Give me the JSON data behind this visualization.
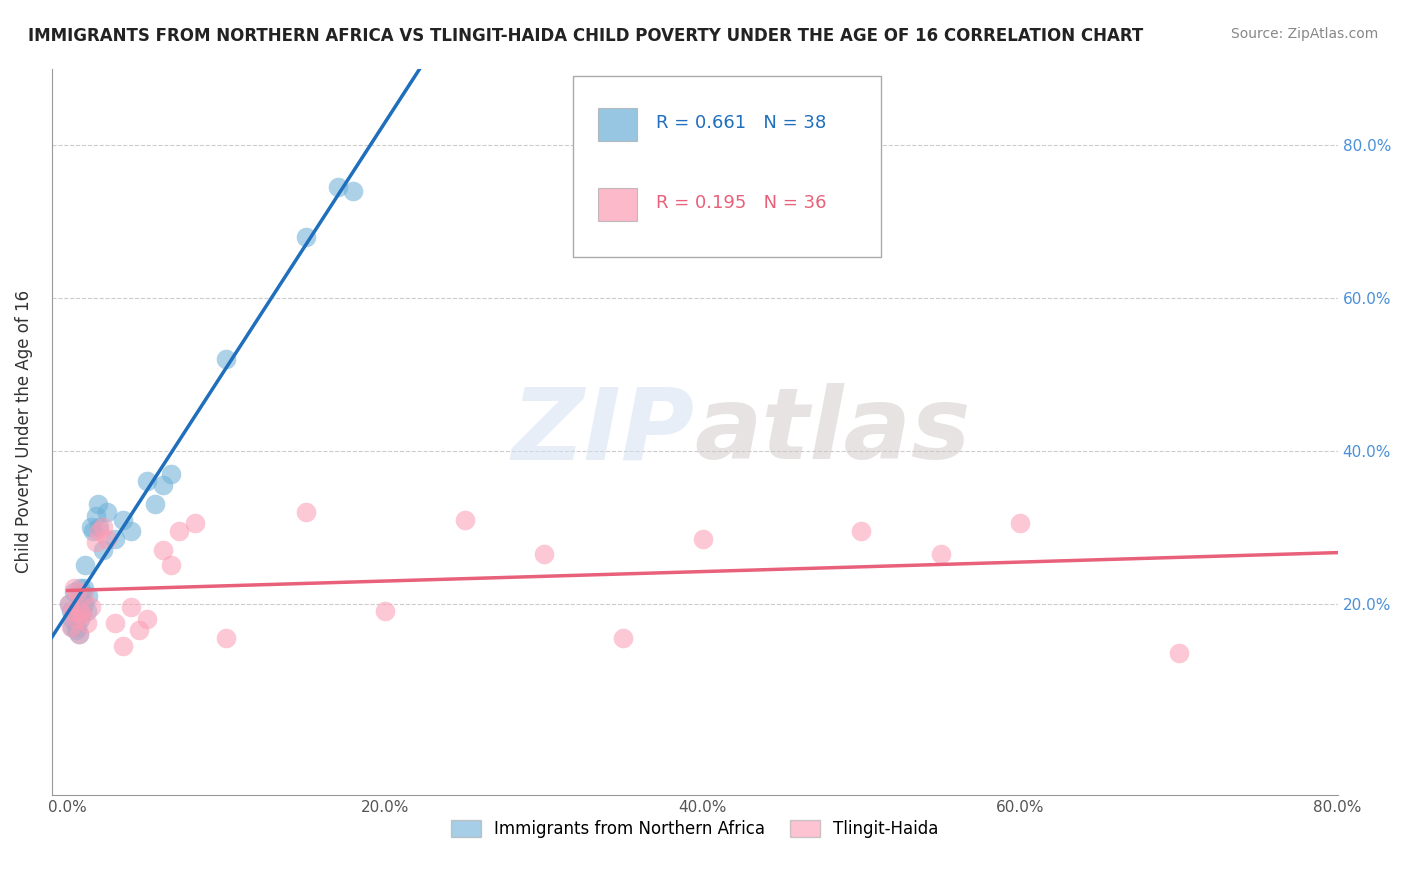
{
  "title": "IMMIGRANTS FROM NORTHERN AFRICA VS TLINGIT-HAIDA CHILD POVERTY UNDER THE AGE OF 16 CORRELATION CHART",
  "source": "Source: ZipAtlas.com",
  "xlabel": "",
  "ylabel": "Child Poverty Under the Age of 16",
  "xlim": [
    0,
    0.8
  ],
  "ylim": [
    -0.05,
    0.9
  ],
  "xticks": [
    0.0,
    0.2,
    0.4,
    0.6,
    0.8
  ],
  "xtick_labels": [
    "0.0%",
    "20.0%",
    "40.0%",
    "60.0%",
    "80.0%"
  ],
  "ytick_labels": [
    "20.0%",
    "40.0%",
    "60.0%",
    "80.0%"
  ],
  "yticks": [
    0.2,
    0.4,
    0.6,
    0.8
  ],
  "right_ytick_labels": [
    "20.0%",
    "40.0%",
    "60.0%",
    "80.0%"
  ],
  "blue_R": 0.661,
  "blue_N": 38,
  "pink_R": 0.195,
  "pink_N": 36,
  "blue_color": "#6baed6",
  "pink_color": "#fc9cb4",
  "blue_line_color": "#1f6fbd",
  "pink_line_color": "#e8607a",
  "watermark": "ZIPatlas",
  "blue_scatter_x": [
    0.001,
    0.002,
    0.003,
    0.003,
    0.004,
    0.005,
    0.005,
    0.006,
    0.006,
    0.007,
    0.007,
    0.008,
    0.008,
    0.009,
    0.009,
    0.01,
    0.01,
    0.011,
    0.012,
    0.013,
    0.015,
    0.016,
    0.018,
    0.019,
    0.02,
    0.022,
    0.025,
    0.03,
    0.035,
    0.04,
    0.05,
    0.055,
    0.06,
    0.065,
    0.1,
    0.15,
    0.17,
    0.18
  ],
  "blue_scatter_y": [
    0.2,
    0.19,
    0.18,
    0.17,
    0.215,
    0.18,
    0.165,
    0.19,
    0.17,
    0.21,
    0.16,
    0.22,
    0.18,
    0.21,
    0.19,
    0.2,
    0.22,
    0.25,
    0.19,
    0.21,
    0.3,
    0.295,
    0.315,
    0.33,
    0.3,
    0.27,
    0.32,
    0.285,
    0.31,
    0.295,
    0.36,
    0.33,
    0.355,
    0.37,
    0.52,
    0.68,
    0.745,
    0.74
  ],
  "pink_scatter_x": [
    0.001,
    0.002,
    0.003,
    0.004,
    0.005,
    0.006,
    0.007,
    0.008,
    0.009,
    0.01,
    0.012,
    0.015,
    0.018,
    0.02,
    0.022,
    0.025,
    0.03,
    0.035,
    0.04,
    0.045,
    0.05,
    0.06,
    0.065,
    0.07,
    0.08,
    0.1,
    0.15,
    0.2,
    0.25,
    0.3,
    0.35,
    0.4,
    0.5,
    0.55,
    0.6,
    0.7
  ],
  "pink_scatter_y": [
    0.2,
    0.17,
    0.19,
    0.22,
    0.18,
    0.215,
    0.16,
    0.19,
    0.185,
    0.21,
    0.175,
    0.195,
    0.28,
    0.295,
    0.3,
    0.285,
    0.175,
    0.145,
    0.195,
    0.165,
    0.18,
    0.27,
    0.25,
    0.295,
    0.305,
    0.155,
    0.32,
    0.19,
    0.31,
    0.265,
    0.155,
    0.285,
    0.295,
    0.265,
    0.305,
    0.135
  ]
}
